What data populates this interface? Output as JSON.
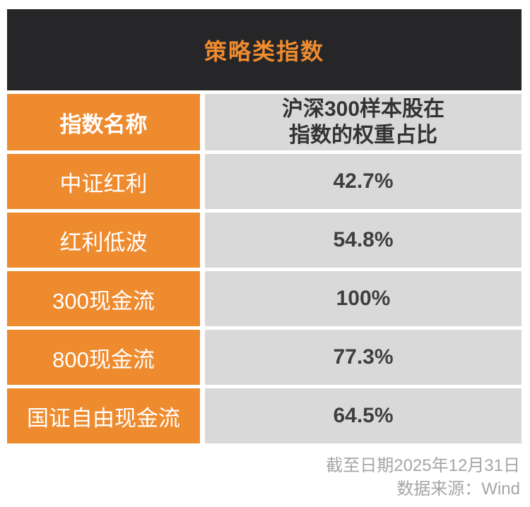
{
  "title": "策略类指数",
  "colors": {
    "orange": "#EF8B2F",
    "dark": "#262628",
    "gray_cell": "#D9D9D9",
    "value_text": "#3F3F3F",
    "header_text": "#333333",
    "footer_text": "#A6A6A6"
  },
  "table": {
    "header": {
      "name_label": "指数名称",
      "weight_label_line1": "沪深300样本股在",
      "weight_label_line2": "指数的权重占比"
    },
    "rows": [
      {
        "name": "中证红利",
        "weight": "42.7%"
      },
      {
        "name": "红利低波",
        "weight": "54.8%"
      },
      {
        "name": "300现金流",
        "weight": "100%"
      },
      {
        "name": "800现金流",
        "weight": "77.3%"
      },
      {
        "name": "国证自由现金流",
        "weight": "64.5%"
      }
    ]
  },
  "footer": {
    "as_of_date": "截至日期2025年12月31日",
    "source": "数据来源：Wind"
  },
  "chart_data": {
    "type": "table",
    "title": "策略类指数",
    "columns": [
      "指数名称",
      "沪深300样本股在指数的权重占比"
    ],
    "rows": [
      [
        "中证红利",
        "42.7%"
      ],
      [
        "红利低波",
        "54.8%"
      ],
      [
        "300现金流",
        "100%"
      ],
      [
        "800现金流",
        "77.3%"
      ],
      [
        "国证自由现金流",
        "64.5%"
      ]
    ],
    "values_numeric_percent": [
      42.7,
      54.8,
      100,
      77.3,
      64.5
    ],
    "annotations": [
      "截至日期2025年12月31日",
      "数据来源：Wind"
    ]
  }
}
